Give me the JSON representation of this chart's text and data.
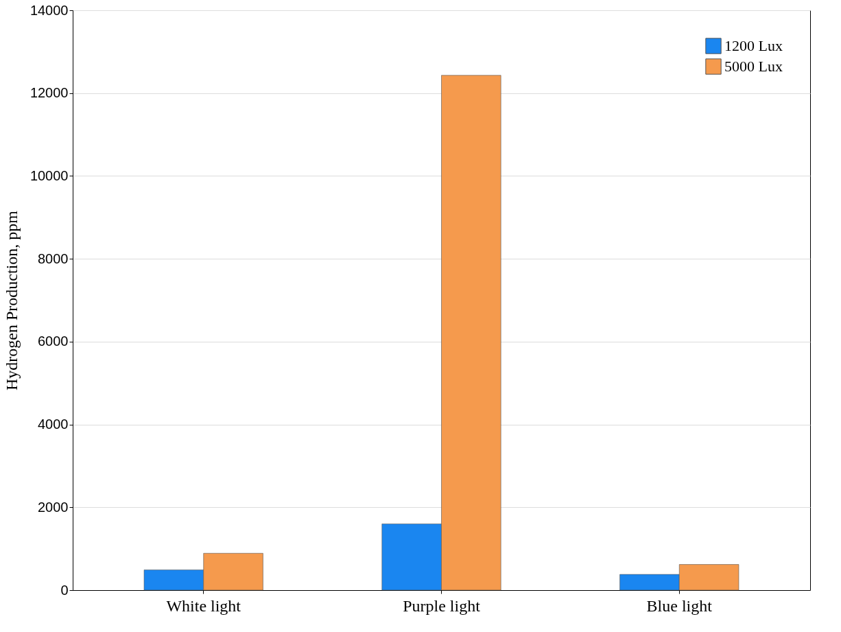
{
  "chart_data": {
    "type": "bar",
    "ylabel": "Hydrogen Production, ppm",
    "categories": [
      "White light",
      "Purple light",
      "Blue light"
    ],
    "series": [
      {
        "name": "1200 Lux",
        "color": "#1a86f0",
        "values": [
          490,
          1600,
          380
        ]
      },
      {
        "name": "5000 Lux",
        "color": "#f59a4d",
        "values": [
          890,
          12430,
          620
        ]
      }
    ],
    "ylim": [
      0,
      14000
    ],
    "yticks": [
      0,
      2000,
      4000,
      6000,
      8000,
      10000,
      12000,
      14000
    ],
    "grid": "y",
    "legend": "top right"
  }
}
